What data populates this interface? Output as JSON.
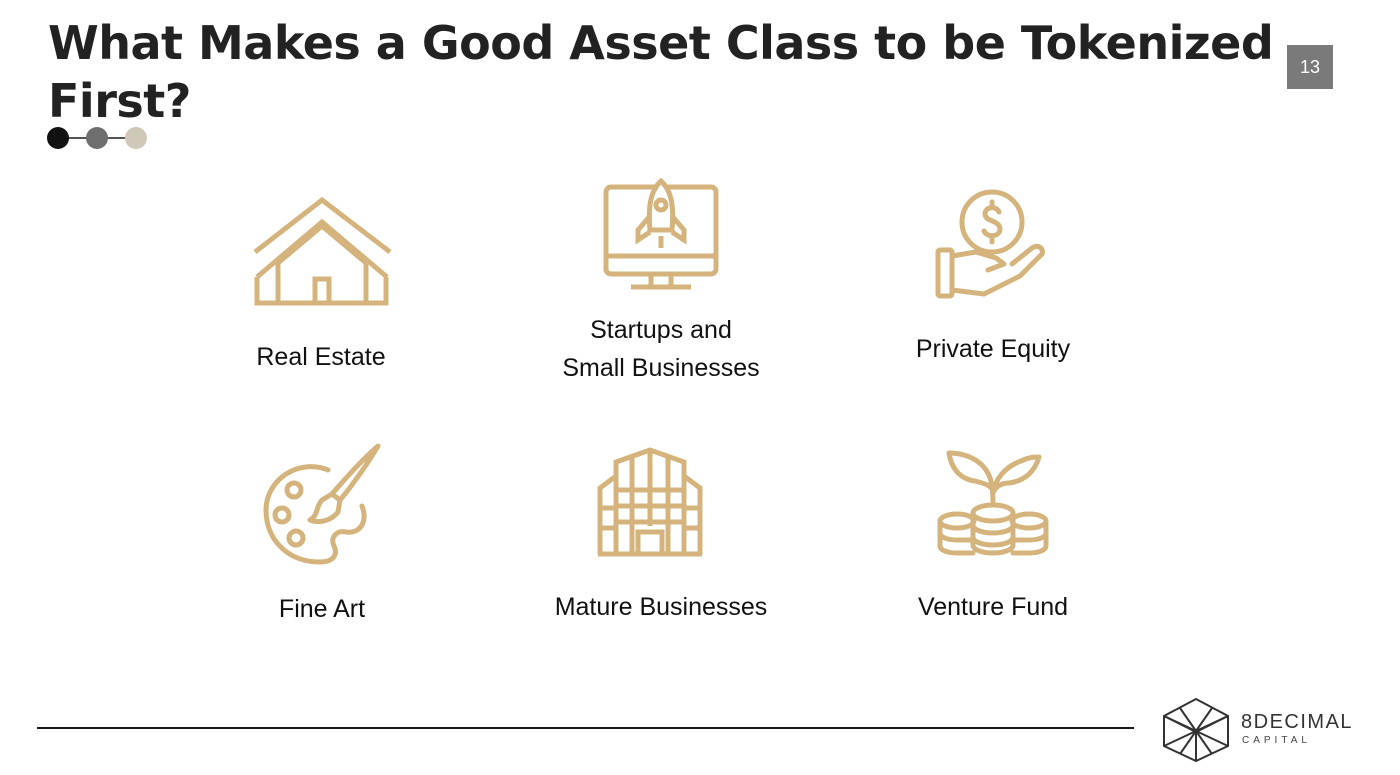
{
  "slide": {
    "title": "What Makes a Good Asset Class to be Tokenized First?",
    "page_number": "13"
  },
  "colors": {
    "icon": "#d4b47c",
    "dot1": "#111111",
    "dot2": "#6e6e6e",
    "dot3": "#cfc8b8"
  },
  "asset_classes": [
    {
      "label": "Real Estate",
      "icon": "house-icon"
    },
    {
      "label": "Startups and\nSmall Businesses",
      "icon": "rocket-monitor-icon"
    },
    {
      "label": "Private Equity",
      "icon": "hand-coin-icon"
    },
    {
      "label": "Fine Art",
      "icon": "palette-icon"
    },
    {
      "label": "Mature Businesses",
      "icon": "office-building-icon"
    },
    {
      "label": "Venture Fund",
      "icon": "coins-sprout-icon"
    }
  ],
  "footer": {
    "brand": "8DECIMAL",
    "sub": "CAPITAL"
  }
}
